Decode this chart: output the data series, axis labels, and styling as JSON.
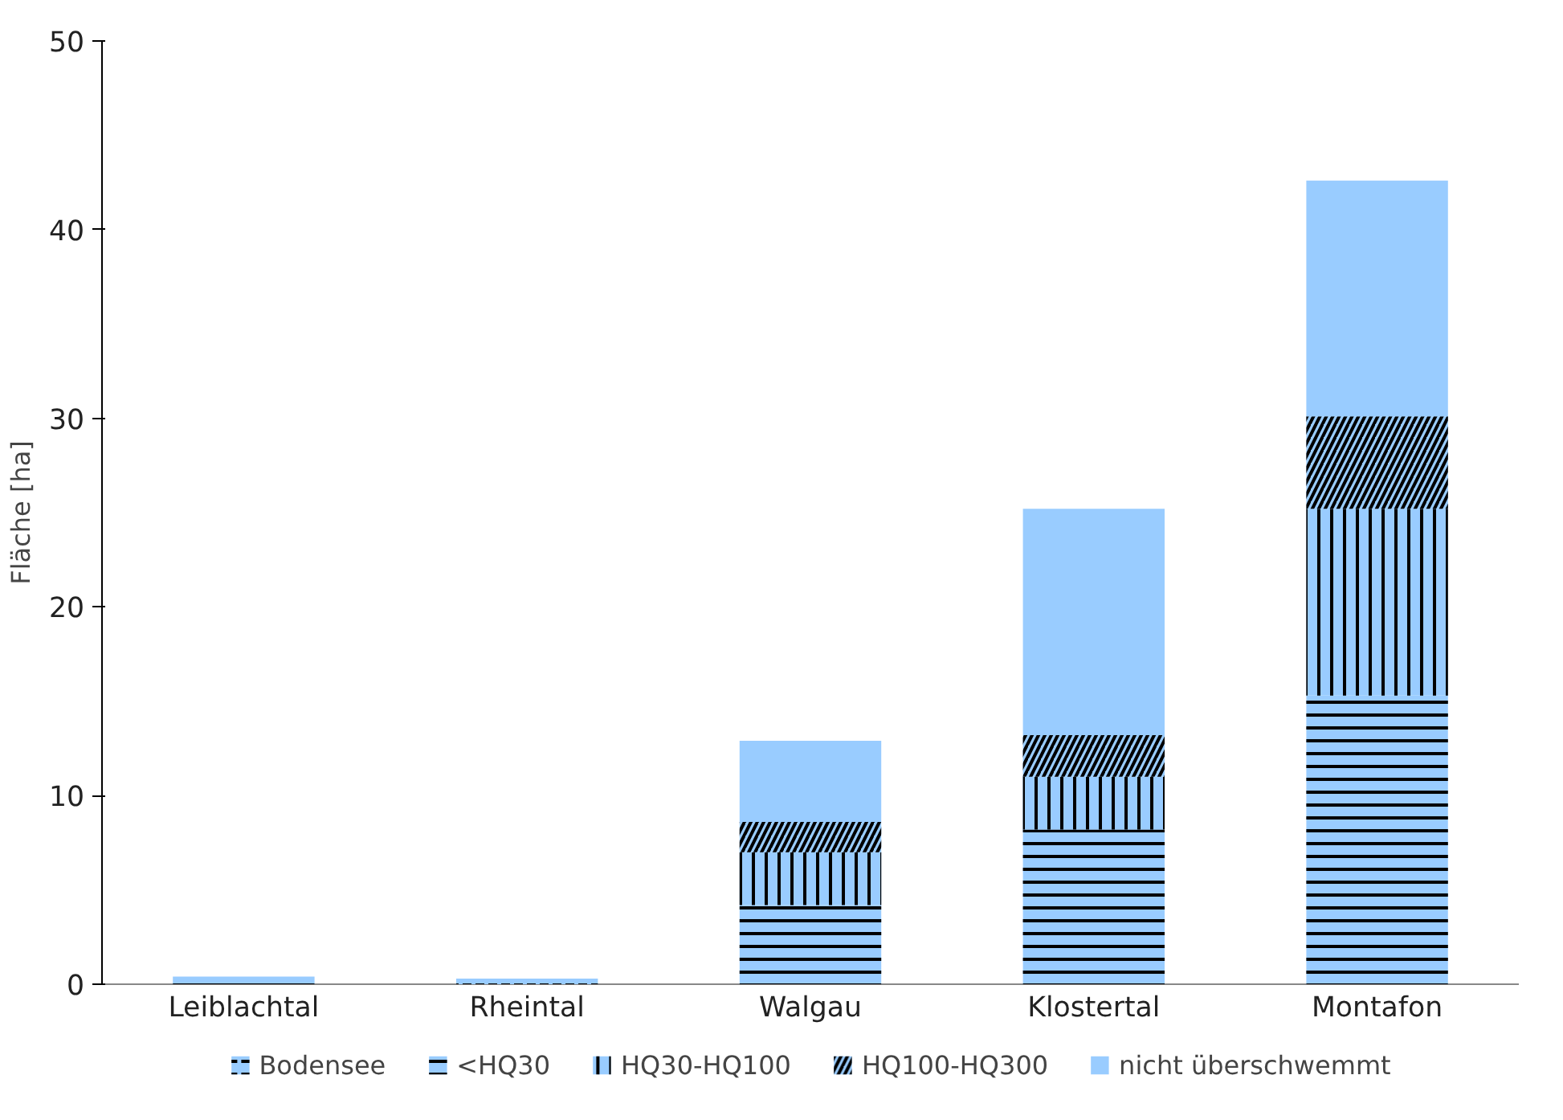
{
  "chart_data": {
    "type": "bar",
    "stacked": true,
    "ylabel": "Fläche [ha]",
    "categories": [
      "Leiblachtal",
      "Rheintal",
      "Walgau",
      "Klostertal",
      "Montafon"
    ],
    "series": [
      {
        "name": "Bodensee",
        "color": "#99ccff",
        "values": [
          0,
          0.3,
          0,
          0,
          0
        ]
      },
      {
        "name": "<HQ30",
        "color": "#99ccff",
        "values": [
          0.3,
          0,
          4.2,
          8.2,
          15.3
        ]
      },
      {
        "name": "HQ30-HQ100",
        "color": "#99ccff",
        "values": [
          0,
          0,
          2.8,
          2.8,
          9.9
        ]
      },
      {
        "name": "HQ100-HQ300",
        "color": "#99ccff",
        "values": [
          0,
          0,
          1.6,
          2.2,
          4.9
        ]
      },
      {
        "name": "nicht überschwemmt",
        "color": "#99ccff",
        "values": [
          0.1,
          0,
          4.3,
          12.0,
          12.5
        ]
      }
    ],
    "ylim": [
      0,
      50
    ],
    "yticks": [
      0,
      10,
      20,
      30,
      40,
      50
    ],
    "grid": false,
    "legend": "bottom"
  }
}
